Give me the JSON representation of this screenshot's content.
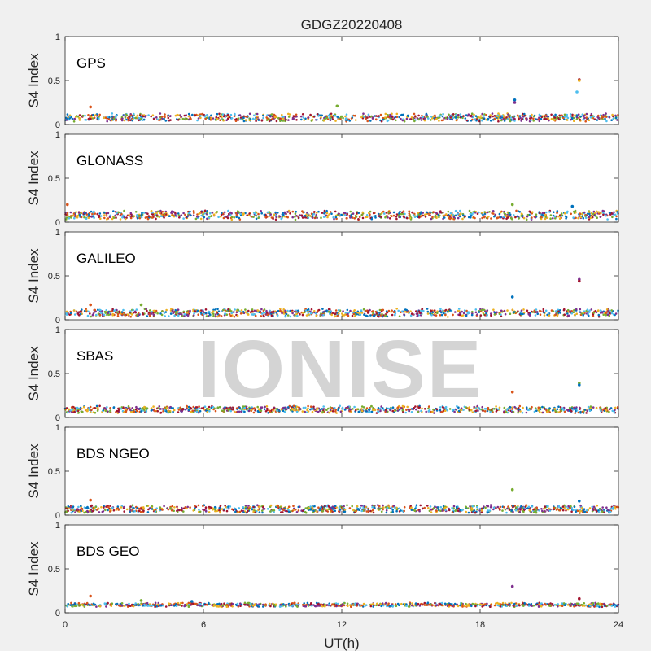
{
  "chart_data": {
    "type": "scatter",
    "title": "GDGZ20220408",
    "xlabel": "UT(h)",
    "xlim": [
      0,
      24
    ],
    "xticks": [
      0,
      6,
      12,
      18,
      24
    ],
    "watermark": "IONISE",
    "series_colors": [
      "#0072BD",
      "#D95319",
      "#EDB120",
      "#7E2F8E",
      "#77AC30",
      "#4DBEEE",
      "#A2142F"
    ],
    "panels": [
      {
        "label": "GPS",
        "ylabel": "S4 Index",
        "ylim": [
          0,
          1
        ],
        "yticks": [
          0,
          0.5,
          1
        ],
        "baseline": 0.08,
        "spread": 0.035,
        "outliers": [
          [
            1.1,
            0.2
          ],
          [
            11.8,
            0.21
          ],
          [
            19.5,
            0.28
          ],
          [
            19.5,
            0.25
          ],
          [
            22.3,
            0.51
          ],
          [
            22.3,
            0.5
          ],
          [
            22.2,
            0.37
          ]
        ]
      },
      {
        "label": "GLONASS",
        "ylabel": "S4 Index",
        "ylim": [
          0,
          1
        ],
        "yticks": [
          0,
          0.5,
          1
        ],
        "baseline": 0.08,
        "spread": 0.04,
        "outliers": [
          [
            0.1,
            0.2
          ],
          [
            19.4,
            0.2
          ],
          [
            22.0,
            0.18
          ]
        ]
      },
      {
        "label": "GALILEO",
        "ylabel": "S4 Index",
        "ylim": [
          0,
          1
        ],
        "yticks": [
          0,
          0.5,
          1
        ],
        "baseline": 0.08,
        "spread": 0.035,
        "outliers": [
          [
            1.1,
            0.17
          ],
          [
            3.3,
            0.17
          ],
          [
            19.4,
            0.26
          ],
          [
            22.3,
            0.46
          ],
          [
            22.3,
            0.44
          ]
        ]
      },
      {
        "label": "SBAS",
        "ylabel": "S4 Index",
        "ylim": [
          0,
          1
        ],
        "yticks": [
          0,
          0.5,
          1
        ],
        "baseline": 0.09,
        "spread": 0.03,
        "outliers": [
          [
            19.4,
            0.29
          ],
          [
            22.3,
            0.39
          ],
          [
            22.3,
            0.37
          ]
        ]
      },
      {
        "label": "BDS NGEO",
        "ylabel": "S4 Index",
        "ylim": [
          0,
          1
        ],
        "yticks": [
          0,
          0.5,
          1
        ],
        "baseline": 0.07,
        "spread": 0.035,
        "outliers": [
          [
            1.1,
            0.17
          ],
          [
            19.4,
            0.29
          ],
          [
            22.3,
            0.16
          ]
        ]
      },
      {
        "label": "BDS GEO",
        "ylabel": "S4 Index",
        "ylim": [
          0,
          1
        ],
        "yticks": [
          0,
          0.5,
          1
        ],
        "baseline": 0.09,
        "spread": 0.012,
        "outliers": [
          [
            1.1,
            0.19
          ],
          [
            3.3,
            0.14
          ],
          [
            5.5,
            0.13
          ],
          [
            19.4,
            0.3
          ],
          [
            22.3,
            0.16
          ]
        ]
      }
    ]
  }
}
